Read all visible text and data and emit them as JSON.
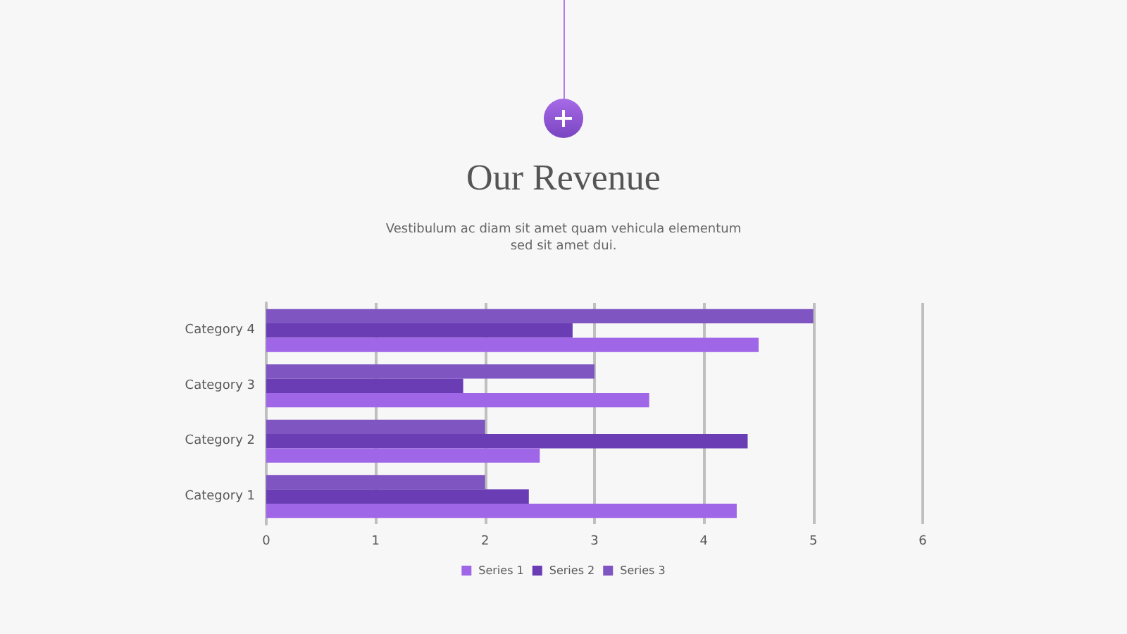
{
  "chart_data": {
    "type": "bar",
    "orientation": "horizontal",
    "title": "Our Revenue",
    "subtitle": "Vestibulum ac diam sit amet quam vehicula elementum\nsed sit amet dui.",
    "categories": [
      "Category 4",
      "Category 3",
      "Category 2",
      "Category 1"
    ],
    "series": [
      {
        "name": "Series 1",
        "color": "#a066e8",
        "values": [
          4.5,
          3.5,
          2.5,
          4.3
        ]
      },
      {
        "name": "Series 2",
        "color": "#6a3db5",
        "values": [
          2.8,
          1.8,
          4.4,
          2.4
        ]
      },
      {
        "name": "Series 3",
        "color": "#7f55c2",
        "values": [
          5,
          3,
          2,
          2
        ]
      }
    ],
    "xlim": [
      0,
      6
    ],
    "xticks": [
      0,
      1,
      2,
      3,
      4,
      5,
      6
    ],
    "grid": "x",
    "legend": "bottom"
  }
}
